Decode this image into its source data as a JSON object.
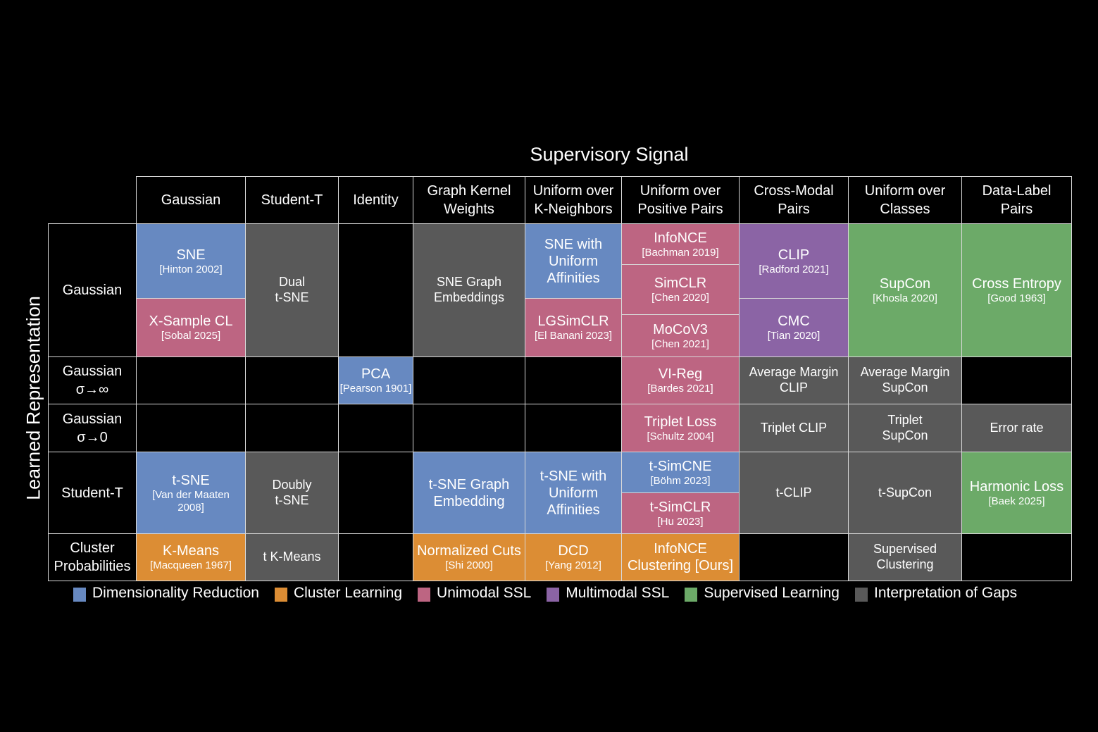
{
  "title": "Supervisory Signal",
  "ylabel": "Learned Representation",
  "colors": {
    "dimensionality_reduction": "#6789c1",
    "cluster_learning": "#dc8d34",
    "unimodal_ssl": "#bd6582",
    "multimodal_ssl": "#8b64a5",
    "supervised_learning": "#6caa68",
    "interpretation_of_gaps": "#595959",
    "empty": "#000000"
  },
  "columns": [
    "Gaussian",
    "Student-T",
    "Identity",
    "Graph Kernel\nWeights",
    "Uniform over\nK-Neighbors",
    "Uniform over\nPositive Pairs",
    "Cross-Modal\nPairs",
    "Uniform over\nClasses",
    "Data-Label\nPairs"
  ],
  "rows": [
    "Gaussian",
    "Gaussian\nσ→∞",
    "Gaussian\nσ→0",
    "Student-T",
    "Cluster\nProbabilities"
  ],
  "legend": [
    {
      "label": "Dimensionality Reduction",
      "category": "dimensionality_reduction"
    },
    {
      "label": "Cluster Learning",
      "category": "cluster_learning"
    },
    {
      "label": "Unimodal SSL",
      "category": "unimodal_ssl"
    },
    {
      "label": "Multimodal SSL",
      "category": "multimodal_ssl"
    },
    {
      "label": "Supervised Learning",
      "category": "supervised_learning"
    },
    {
      "label": "Interpretation of Gaps",
      "category": "interpretation_of_gaps"
    }
  ],
  "cells": [
    {
      "row": "Gaussian",
      "column": "Gaussian",
      "title": "SNE",
      "citation": "[Hinton 2002]",
      "category": "dimensionality_reduction"
    },
    {
      "row": "Gaussian",
      "column": "Gaussian",
      "title": "X-Sample CL",
      "citation": "[Sobal 2025]",
      "category": "unimodal_ssl"
    },
    {
      "row": "Gaussian",
      "column": "Student-T",
      "title": "Dual\nt-SNE",
      "citation": "",
      "category": "interpretation_of_gaps"
    },
    {
      "row": "Gaussian",
      "column": "Identity",
      "title": "",
      "citation": "",
      "category": "empty"
    },
    {
      "row": "Gaussian",
      "column": "Graph Kernel Weights",
      "title": "SNE Graph\nEmbeddings",
      "citation": "",
      "category": "interpretation_of_gaps"
    },
    {
      "row": "Gaussian",
      "column": "Uniform over K-Neighbors",
      "title": "SNE with\nUniform\nAffinities",
      "citation": "",
      "category": "dimensionality_reduction"
    },
    {
      "row": "Gaussian",
      "column": "Uniform over K-Neighbors",
      "title": "LGSimCLR",
      "citation": "[El Banani 2023]",
      "category": "unimodal_ssl"
    },
    {
      "row": "Gaussian",
      "column": "Uniform over Positive Pairs",
      "title": "InfoNCE",
      "citation": "[Bachman 2019]",
      "category": "unimodal_ssl"
    },
    {
      "row": "Gaussian",
      "column": "Uniform over Positive Pairs",
      "title": "SimCLR",
      "citation": "[Chen 2020]",
      "category": "unimodal_ssl"
    },
    {
      "row": "Gaussian",
      "column": "Uniform over Positive Pairs",
      "title": "MoCoV3",
      "citation": "[Chen 2021]",
      "category": "unimodal_ssl"
    },
    {
      "row": "Gaussian",
      "column": "Cross-Modal Pairs",
      "title": "CLIP",
      "citation": "[Radford 2021]",
      "category": "multimodal_ssl"
    },
    {
      "row": "Gaussian",
      "column": "Cross-Modal Pairs",
      "title": "CMC",
      "citation": "[Tian 2020]",
      "category": "multimodal_ssl"
    },
    {
      "row": "Gaussian",
      "column": "Uniform over Classes",
      "title": "SupCon",
      "citation": "[Khosla 2020]",
      "category": "supervised_learning"
    },
    {
      "row": "Gaussian",
      "column": "Data-Label Pairs",
      "title": "Cross Entropy",
      "citation": "[Good 1963]",
      "category": "supervised_learning"
    },
    {
      "row": "Gaussian σ→∞",
      "column": "Gaussian",
      "title": "",
      "citation": "",
      "category": "empty"
    },
    {
      "row": "Gaussian σ→∞",
      "column": "Student-T",
      "title": "",
      "citation": "",
      "category": "empty"
    },
    {
      "row": "Gaussian σ→∞",
      "column": "Identity",
      "title": "PCA",
      "citation": "[Pearson 1901]",
      "category": "dimensionality_reduction"
    },
    {
      "row": "Gaussian σ→∞",
      "column": "Graph Kernel Weights",
      "title": "",
      "citation": "",
      "category": "empty"
    },
    {
      "row": "Gaussian σ→∞",
      "column": "Uniform over K-Neighbors",
      "title": "",
      "citation": "",
      "category": "empty"
    },
    {
      "row": "Gaussian σ→∞",
      "column": "Uniform over Positive Pairs",
      "title": "VI-Reg",
      "citation": "[Bardes 2021]",
      "category": "unimodal_ssl"
    },
    {
      "row": "Gaussian σ→∞",
      "column": "Cross-Modal Pairs",
      "title": "Average Margin\nCLIP",
      "citation": "",
      "category": "interpretation_of_gaps"
    },
    {
      "row": "Gaussian σ→∞",
      "column": "Uniform over Classes",
      "title": "Average Margin\nSupCon",
      "citation": "",
      "category": "interpretation_of_gaps"
    },
    {
      "row": "Gaussian σ→∞",
      "column": "Data-Label Pairs",
      "title": "",
      "citation": "",
      "category": "empty"
    },
    {
      "row": "Gaussian σ→0",
      "column": "Gaussian",
      "title": "",
      "citation": "",
      "category": "empty"
    },
    {
      "row": "Gaussian σ→0",
      "column": "Student-T",
      "title": "",
      "citation": "",
      "category": "empty"
    },
    {
      "row": "Gaussian σ→0",
      "column": "Identity",
      "title": "",
      "citation": "",
      "category": "empty"
    },
    {
      "row": "Gaussian σ→0",
      "column": "Graph Kernel Weights",
      "title": "",
      "citation": "",
      "category": "empty"
    },
    {
      "row": "Gaussian σ→0",
      "column": "Uniform over K-Neighbors",
      "title": "",
      "citation": "",
      "category": "empty"
    },
    {
      "row": "Gaussian σ→0",
      "column": "Uniform over Positive Pairs",
      "title": "Triplet Loss",
      "citation": "[Schultz 2004]",
      "category": "unimodal_ssl"
    },
    {
      "row": "Gaussian σ→0",
      "column": "Cross-Modal Pairs",
      "title": "Triplet CLIP",
      "citation": "",
      "category": "interpretation_of_gaps"
    },
    {
      "row": "Gaussian σ→0",
      "column": "Uniform over Classes",
      "title": "Triplet\nSupCon",
      "citation": "",
      "category": "interpretation_of_gaps"
    },
    {
      "row": "Gaussian σ→0",
      "column": "Data-Label Pairs",
      "title": "Error rate",
      "citation": "",
      "category": "interpretation_of_gaps"
    },
    {
      "row": "Student-T",
      "column": "Gaussian",
      "title": "t-SNE",
      "citation": "[Van der Maaten\n2008]",
      "category": "dimensionality_reduction"
    },
    {
      "row": "Student-T",
      "column": "Student-T",
      "title": "Doubly\nt-SNE",
      "citation": "",
      "category": "interpretation_of_gaps"
    },
    {
      "row": "Student-T",
      "column": "Identity",
      "title": "",
      "citation": "",
      "category": "empty"
    },
    {
      "row": "Student-T",
      "column": "Graph Kernel Weights",
      "title": "t-SNE Graph\nEmbedding",
      "citation": "",
      "category": "dimensionality_reduction"
    },
    {
      "row": "Student-T",
      "column": "Uniform over K-Neighbors",
      "title": "t-SNE with\nUniform\nAffinities",
      "citation": "",
      "category": "dimensionality_reduction"
    },
    {
      "row": "Student-T",
      "column": "Uniform over Positive Pairs",
      "title": "t-SimCNE",
      "citation": "[Böhm 2023]",
      "category": "dimensionality_reduction"
    },
    {
      "row": "Student-T",
      "column": "Uniform over Positive Pairs",
      "title": "t-SimCLR",
      "citation": "[Hu 2023]",
      "category": "unimodal_ssl"
    },
    {
      "row": "Student-T",
      "column": "Cross-Modal Pairs",
      "title": "t-CLIP",
      "citation": "",
      "category": "interpretation_of_gaps"
    },
    {
      "row": "Student-T",
      "column": "Uniform over Classes",
      "title": "t-SupCon",
      "citation": "",
      "category": "interpretation_of_gaps"
    },
    {
      "row": "Student-T",
      "column": "Data-Label Pairs",
      "title": "Harmonic Loss",
      "citation": "[Baek 2025]",
      "category": "supervised_learning"
    },
    {
      "row": "Cluster Probabilities",
      "column": "Gaussian",
      "title": "K-Means",
      "citation": "[Macqueen 1967]",
      "category": "cluster_learning"
    },
    {
      "row": "Cluster Probabilities",
      "column": "Student-T",
      "title": "t K-Means",
      "citation": "",
      "category": "interpretation_of_gaps"
    },
    {
      "row": "Cluster Probabilities",
      "column": "Identity",
      "title": "",
      "citation": "",
      "category": "empty"
    },
    {
      "row": "Cluster Probabilities",
      "column": "Graph Kernel Weights",
      "title": "Normalized Cuts",
      "citation": "[Shi 2000]",
      "category": "cluster_learning"
    },
    {
      "row": "Cluster Probabilities",
      "column": "Uniform over K-Neighbors",
      "title": "DCD",
      "citation": "[Yang 2012]",
      "category": "cluster_learning"
    },
    {
      "row": "Cluster Probabilities",
      "column": "Uniform over Positive Pairs",
      "title": "InfoNCE\nClustering [Ours]",
      "citation": "",
      "category": "cluster_learning"
    },
    {
      "row": "Cluster Probabilities",
      "column": "Cross-Modal Pairs",
      "title": "",
      "citation": "",
      "category": "empty"
    },
    {
      "row": "Cluster Probabilities",
      "column": "Uniform over Classes",
      "title": "Supervised\nClustering",
      "citation": "",
      "category": "interpretation_of_gaps"
    },
    {
      "row": "Cluster Probabilities",
      "column": "Data-Label Pairs",
      "title": "",
      "citation": "",
      "category": "empty"
    }
  ]
}
